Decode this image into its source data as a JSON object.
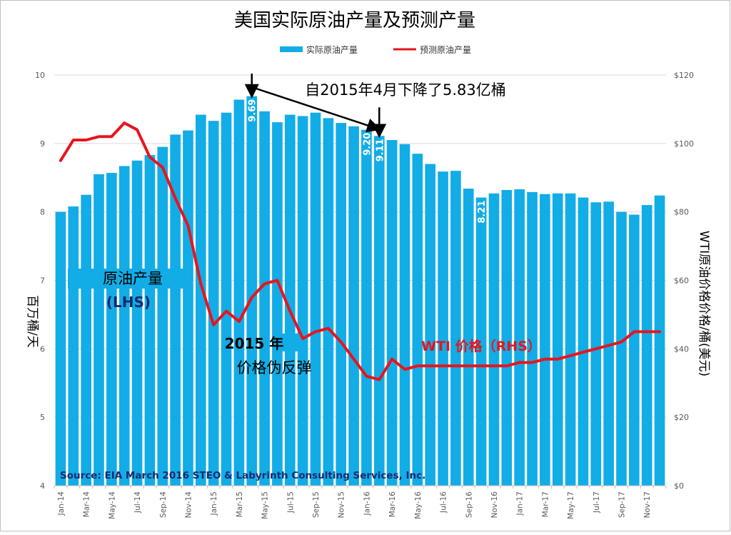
{
  "chart_data": {
    "type": "bar",
    "title": "美国实际原油产量及预测产量",
    "legend": {
      "placement": "top-center",
      "entries": [
        {
          "name": "实际原油产量",
          "color": "#12ACE6"
        },
        {
          "name": "预测原油产量",
          "color": "#E8141C"
        }
      ]
    },
    "x": [
      "Jan-14",
      "Feb-14",
      "Mar-14",
      "Apr-14",
      "May-14",
      "Jun-14",
      "Jul-14",
      "Aug-14",
      "Sep-14",
      "Oct-14",
      "Nov-14",
      "Dec-14",
      "Jan-15",
      "Feb-15",
      "Mar-15",
      "Apr-15",
      "May-15",
      "Jun-15",
      "Jul-15",
      "Aug-15",
      "Sep-15",
      "Oct-15",
      "Nov-15",
      "Dec-15",
      "Jan-16",
      "Feb-16",
      "Mar-16",
      "Apr-16",
      "May-16",
      "Jun-16",
      "Jul-16",
      "Aug-16",
      "Sep-16",
      "Oct-16",
      "Nov-16",
      "Dec-16",
      "Jan-17",
      "Feb-17",
      "Mar-17",
      "Apr-17",
      "May-17",
      "Jun-17",
      "Jul-17",
      "Aug-17",
      "Sep-17",
      "Oct-17",
      "Nov-17",
      "Dec-17"
    ],
    "xtick_labels": [
      "Jan-14",
      "Mar-14",
      "May-14",
      "Jul-14",
      "Sep-14",
      "Nov-14",
      "Jan-15",
      "Mar-15",
      "May-15",
      "Jul-15",
      "Sep-15",
      "Nov-15",
      "Jan-16",
      "Mar-16",
      "May-16",
      "Jul-16",
      "Sep-16",
      "Nov-16",
      "Jan-17",
      "Mar-17",
      "May-17",
      "Jul-17",
      "Sep-17",
      "Nov-17"
    ],
    "series": [
      {
        "name": "实际原油产量",
        "type": "bar",
        "axis": "left",
        "color": "#12ACE6",
        "values": [
          8.0,
          8.08,
          8.25,
          8.55,
          8.57,
          8.67,
          8.75,
          8.83,
          8.95,
          9.13,
          9.19,
          9.42,
          9.33,
          9.45,
          9.64,
          9.69,
          9.47,
          9.31,
          9.42,
          9.4,
          9.45,
          9.37,
          9.3,
          9.25,
          9.2,
          9.11,
          9.05,
          8.99,
          8.85,
          8.7,
          8.59,
          8.6,
          8.34,
          8.21,
          8.27,
          8.32,
          8.33,
          8.29,
          8.26,
          8.27,
          8.27,
          8.21,
          8.14,
          8.15,
          8.0,
          7.96,
          8.1,
          8.24
        ]
      },
      {
        "name": "预测原油产量",
        "type": "line",
        "axis": "right",
        "color": "#E8141C",
        "values": [
          95,
          101,
          101,
          102,
          102,
          106,
          104,
          96,
          93,
          84,
          76,
          59,
          47,
          51,
          48,
          55,
          59,
          60,
          51,
          43,
          45,
          46,
          42,
          37,
          32,
          31,
          37,
          34,
          35,
          35,
          35,
          35,
          35,
          35,
          35,
          35,
          36,
          36,
          37,
          37,
          38,
          39,
          40,
          41,
          42,
          45,
          45,
          45
        ]
      }
    ],
    "y_left": {
      "label": "百万桶/天",
      "ylim": [
        4,
        10
      ],
      "ticks": [
        "4",
        "5",
        "6",
        "7",
        "8",
        "9",
        "10"
      ]
    },
    "y_right": {
      "label": "WTI原油价格价格/桶(美元)",
      "ylim": [
        0,
        120
      ],
      "ticks": [
        "$0",
        "$20",
        "$40",
        "$60",
        "$80",
        "$100",
        "$120"
      ]
    },
    "grid": "horizontal",
    "bar_value_labels": [
      {
        "category": "Apr-15",
        "text": "9.69"
      },
      {
        "category": "Jan-16",
        "text": "9.20"
      },
      {
        "category": "Feb-16",
        "text": "9.11"
      },
      {
        "category": "Oct-16",
        "text": "8.21"
      }
    ],
    "annotations": {
      "decline": "自2015年4月下降了5.83亿桶",
      "decline_from": "Apr-15",
      "decline_to": "Feb-16",
      "production_label": "原油产量",
      "production_axis": "(LHS)",
      "rebound_year": "2015 年",
      "rebound_text": "价格伪反弹",
      "wti_label": "WTI 价格（RHS）",
      "source": "Source:  EIA March 2016 STEO & Labyrinth Consulting  Services, Inc."
    }
  }
}
